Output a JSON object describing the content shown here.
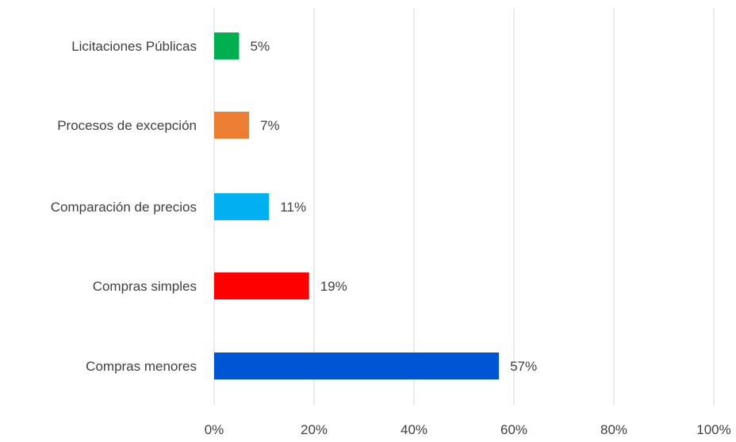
{
  "chart_data": {
    "type": "bar",
    "orientation": "horizontal",
    "categories": [
      "Licitaciones Públicas",
      "Procesos de excepción",
      "Comparación de precios",
      "Compras simples",
      "Compras menores"
    ],
    "values": [
      5,
      7,
      11,
      19,
      57
    ],
    "data_labels": [
      "5%",
      "7%",
      "11%",
      "19%",
      "57%"
    ],
    "colors": [
      "#00b050",
      "#ed7d31",
      "#00b0f0",
      "#ff0000",
      "#0055d4"
    ],
    "xlim": [
      0,
      100
    ],
    "x_ticks": [
      0,
      20,
      40,
      60,
      80,
      100
    ],
    "x_tick_labels": [
      "0%",
      "20%",
      "40%",
      "60%",
      "80%",
      "100%"
    ],
    "grid": true,
    "legend": "none",
    "title": "",
    "xlabel": "",
    "ylabel": ""
  }
}
